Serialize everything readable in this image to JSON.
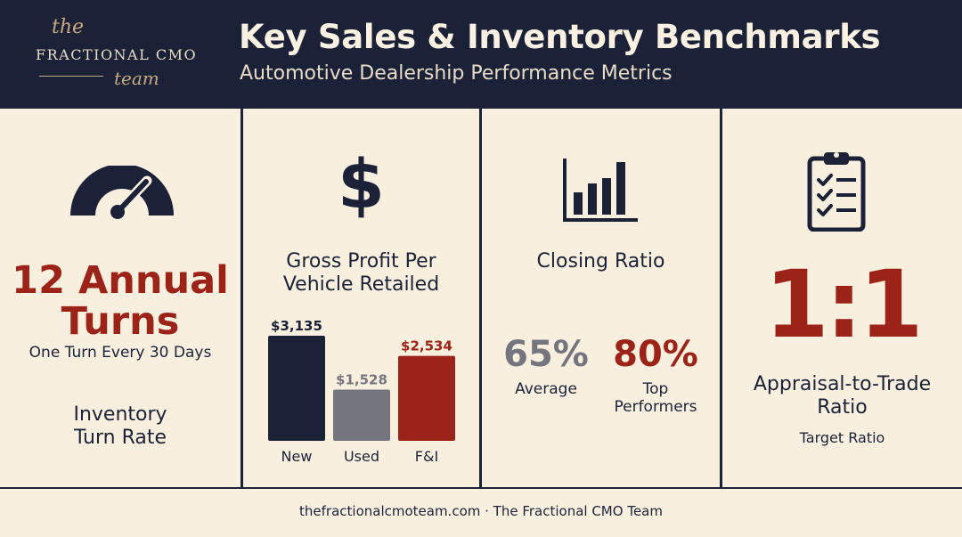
{
  "logo": {
    "the": "the",
    "main": "FRACTIONAL CMO",
    "team": "team"
  },
  "header": {
    "title": "Key Sales & Inventory Benchmarks",
    "subtitle": "Automotive Dealership Performance Metrics"
  },
  "panels": {
    "turns": {
      "icon": "speedometer-icon",
      "value_line1": "12 Annual",
      "value_line2": "Turns",
      "note": "One Turn Every 30 Days",
      "label_line1": "Inventory",
      "label_line2": "Turn Rate"
    },
    "gross_profit": {
      "icon": "dollar-sign-icon",
      "label_line1": "Gross Profit Per",
      "label_line2": "Vehicle Retailed"
    },
    "closing": {
      "icon": "bar-chart-icon",
      "label": "Closing Ratio",
      "average_value": "65%",
      "average_label": "Average",
      "top_value": "80%",
      "top_label_line1": "Top",
      "top_label_line2": "Performers"
    },
    "appraisal": {
      "icon": "clipboard-checklist-icon",
      "value": "1:1",
      "label_line1": "Appraisal-to-Trade",
      "label_line2": "Ratio",
      "note": "Target Ratio"
    }
  },
  "chart_data": {
    "type": "bar",
    "title": "Gross Profit Per Vehicle Retailed",
    "categories": [
      "New",
      "Used",
      "F&I"
    ],
    "values": [
      3135,
      1528,
      2534
    ],
    "value_labels": [
      "$3,135",
      "$1,528",
      "$2,534"
    ],
    "colors": [
      "#1b2238",
      "#74757e",
      "#9c2317"
    ],
    "ylim": [
      0,
      3135
    ],
    "grid": false,
    "legend": "none"
  },
  "colors": {
    "navy": "#1b2238",
    "cream": "#f8efdf",
    "red": "#9c2317",
    "grey": "#74757e",
    "gold": "#c9a981"
  },
  "footer": {
    "text": "thefractionalcmoteam.com · The Fractional CMO Team"
  }
}
